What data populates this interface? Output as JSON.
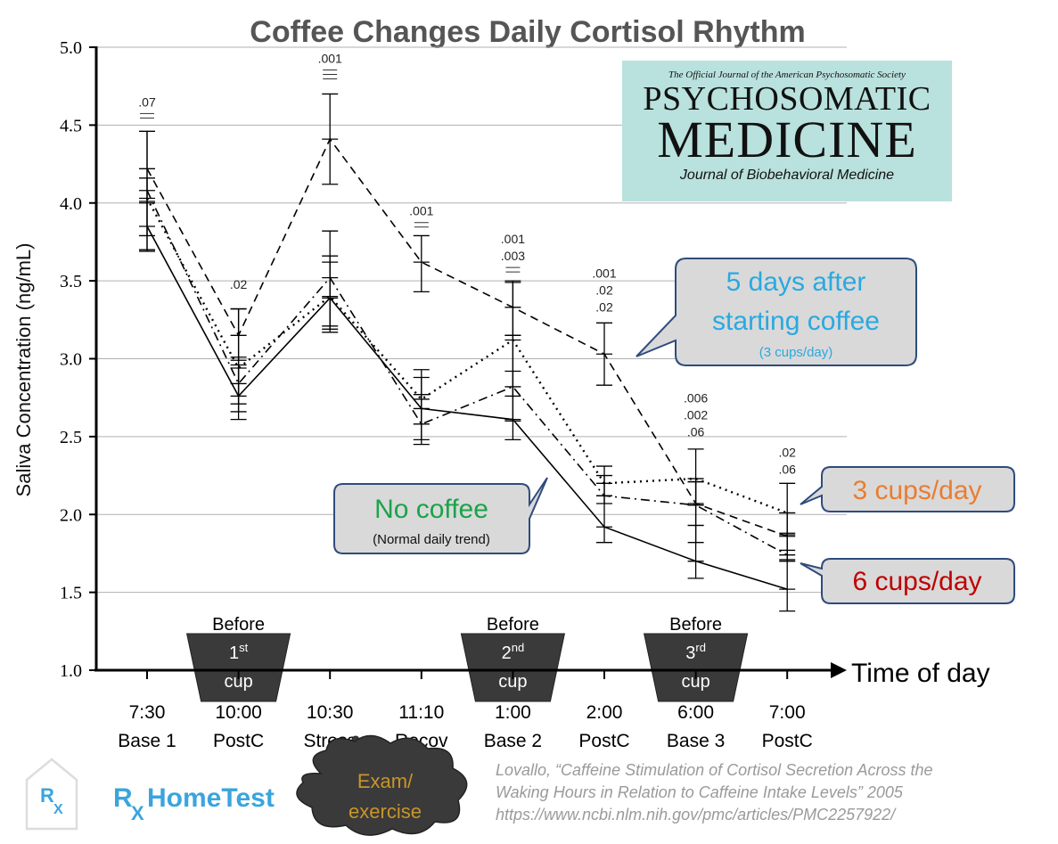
{
  "chart_data": {
    "type": "line",
    "title": "Coffee Changes Daily Cortisol Rhythm",
    "ylabel": "Saliva Concentration (ng/mL)",
    "xlabel": "Time of day",
    "ylim": [
      1.0,
      5.0
    ],
    "yticks": [
      "1.0",
      "1.5",
      "2.0",
      "2.5",
      "3.0",
      "3.5",
      "4.0",
      "4.5",
      "5.0"
    ],
    "grid": true,
    "categories": [
      {
        "time": "7:30",
        "label": "Base 1"
      },
      {
        "time": "10:00",
        "label": "PostC"
      },
      {
        "time": "10:30",
        "label": "Stress"
      },
      {
        "time": "11:10",
        "label": "Recov"
      },
      {
        "time": "1:00",
        "label": "Base 2"
      },
      {
        "time": "2:00",
        "label": "PostC"
      },
      {
        "time": "6:00",
        "label": "Base 3"
      },
      {
        "time": "7:00",
        "label": "PostC"
      }
    ],
    "series": [
      {
        "style": "solid",
        "values": [
          3.85,
          2.76,
          3.39,
          2.68,
          2.61,
          1.92,
          1.7,
          1.52
        ],
        "err_hi": [
          4.01,
          2.96,
          3.62,
          2.88,
          2.92,
          2.12,
          1.93,
          1.77
        ],
        "err_lo": [
          3.69,
          2.61,
          3.17,
          2.48,
          2.48,
          1.82,
          1.59,
          1.38
        ]
      },
      {
        "style": "dotted",
        "values": [
          4.03,
          2.94,
          3.4,
          2.74,
          3.12,
          2.2,
          2.23,
          2.01
        ],
        "err_hi": [
          4.16,
          3.01,
          3.66,
          2.93,
          3.15,
          2.31,
          2.42,
          2.2
        ],
        "err_lo": [
          3.7,
          2.71,
          3.21,
          2.58,
          2.76,
          2.12,
          2.06,
          1.87
        ]
      },
      {
        "style": "dashdot",
        "values": [
          4.08,
          2.84,
          3.52,
          2.58,
          2.82,
          2.12,
          2.06,
          1.74
        ],
        "err_hi": [
          4.46,
          3.32,
          3.82,
          2.77,
          3.49,
          2.25,
          2.21,
          1.88
        ],
        "err_lo": [
          3.79,
          2.66,
          3.19,
          2.45,
          2.6,
          2.07,
          1.82,
          1.7
        ]
      },
      {
        "style": "dashed",
        "values": [
          4.22,
          3.15,
          4.41,
          3.62,
          3.33,
          3.03,
          2.07,
          1.86
        ],
        "err_hi": [
          4.46,
          3.32,
          4.7,
          3.79,
          3.5,
          3.23,
          2.21,
          2.01
        ],
        "err_lo": [
          4.0,
          2.99,
          4.12,
          3.43,
          3.15,
          2.83,
          1.93,
          1.71
        ]
      }
    ],
    "annotations": [
      {
        "index": 0,
        "y": 4.62,
        "lines": [
          ".07"
        ],
        "dashes": 2
      },
      {
        "index": 1,
        "y": 3.45,
        "lines": [
          ".02"
        ],
        "dashes": 0
      },
      {
        "index": 2,
        "y": 4.9,
        "lines": [
          ".001"
        ],
        "dashes": 3
      },
      {
        "index": 3,
        "y": 3.92,
        "lines": [
          ".001"
        ],
        "dashes": 2
      },
      {
        "index": 4,
        "y": 3.74,
        "lines": [
          ".001",
          ".003"
        ],
        "dashes": 2
      },
      {
        "index": 5,
        "y": 3.52,
        "lines": [
          ".001",
          ".02",
          ".02"
        ],
        "dashes": 0
      },
      {
        "index": 6,
        "y": 2.72,
        "lines": [
          ".006",
          ".002",
          ".06"
        ],
        "dashes": 0
      },
      {
        "index": 7,
        "y": 2.37,
        "lines": [
          ".02",
          ".06"
        ],
        "dashes": 0
      }
    ],
    "cups": [
      {
        "index": 1,
        "before": "Before",
        "num": "1",
        "sup": "st",
        "word": "cup"
      },
      {
        "index": 4,
        "before": "Before",
        "num": "2",
        "sup": "nd",
        "word": "cup"
      },
      {
        "index": 6,
        "before": "Before",
        "num": "3",
        "sup": "rd",
        "word": "cup"
      }
    ],
    "callouts": {
      "five_days": {
        "line1": "5 days after",
        "line2": "starting coffee",
        "line3": "(3 cups/day)",
        "color": "#29a9e1"
      },
      "no_coffee": {
        "line1": "No coffee",
        "line2": "(Normal daily trend)",
        "color": "#1aa34a"
      },
      "three_cups": {
        "text": "3 cups/day",
        "color": "#e97d32"
      },
      "six_cups": {
        "text": "6 cups/day",
        "color": "#c00000"
      }
    },
    "stress_bubble": {
      "line1": "Exam/",
      "line2": "exercise",
      "color": "#c8952a"
    }
  },
  "journal": {
    "top": "The Official Journal of the American Psychosomatic Society",
    "line1": "PSYCHOSOMATIC",
    "line2": "MEDICINE",
    "subtitle": "Journal of Biobehavioral Medicine"
  },
  "logo": {
    "text": "HomeTest",
    "rx": "R",
    "x": "X",
    "color": "#3aa5dd"
  },
  "citation": {
    "line1": "Lovallo, “Caffeine Stimulation of Cortisol Secretion Across the",
    "line2": "Waking Hours in Relation to Caffeine Intake Levels” 2005",
    "line3": "https://www.ncbi.nlm.nih.gov/pmc/articles/PMC2257922/"
  }
}
